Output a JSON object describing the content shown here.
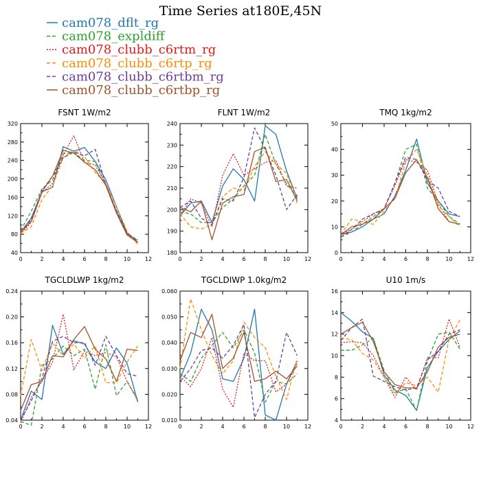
{
  "figure_title": "Time Series at180E,45N",
  "legend": [
    {
      "label": "cam078_dflt_rg",
      "color": "#1f77b4",
      "dash": "solid"
    },
    {
      "label": "cam078_expldiff",
      "color": "#2ca02c",
      "dash": "dashed"
    },
    {
      "label": "cam078_clubb_c6rtm_rg",
      "color": "#e31a1c",
      "dash": "dotted"
    },
    {
      "label": "cam078_clubb_c6rtp_rg",
      "color": "#ff8c00",
      "dash": "dashed"
    },
    {
      "label": "cam078_clubb_c6rtbm_rg",
      "color": "#6a3d9a",
      "dash": "dashed"
    },
    {
      "label": "cam078_clubb_c6rtbp_rg",
      "color": "#a0522d",
      "dash": "solid"
    }
  ],
  "chart_data": [
    {
      "type": "line",
      "title": "FSNT 1W/m2",
      "x": [
        0,
        1,
        2,
        3,
        4,
        5,
        6,
        7,
        8,
        9,
        10,
        11
      ],
      "xlim": [
        0,
        12
      ],
      "xticks": [
        "0",
        "2",
        "4",
        "6",
        "8",
        "10",
        "12"
      ],
      "ylim": [
        40,
        320
      ],
      "yticks": [
        "40",
        "80",
        "120",
        "160",
        "200",
        "240",
        "280",
        "320"
      ],
      "series": [
        {
          "name": "cam078_dflt_rg",
          "values": [
            84,
            115,
            172,
            182,
            270,
            260,
            268,
            238,
            198,
            140,
            82,
            63
          ]
        },
        {
          "name": "cam078_expldiff",
          "values": [
            88,
            130,
            178,
            198,
            255,
            257,
            240,
            238,
            186,
            132,
            80,
            68
          ]
        },
        {
          "name": "cam078_clubb_c6rtm_rg",
          "values": [
            80,
            106,
            170,
            190,
            252,
            294,
            236,
            230,
            190,
            128,
            82,
            62
          ]
        },
        {
          "name": "cam078_clubb_c6rtp_rg",
          "values": [
            82,
            96,
            155,
            185,
            246,
            262,
            248,
            214,
            190,
            140,
            86,
            58
          ]
        },
        {
          "name": "cam078_clubb_c6rtbm_rg",
          "values": [
            86,
            112,
            175,
            206,
            246,
            258,
            250,
            264,
            188,
            130,
            82,
            66
          ]
        },
        {
          "name": "cam078_clubb_c6rtbp_rg",
          "values": [
            84,
            108,
            172,
            206,
            262,
            256,
            236,
            220,
            186,
            126,
            78,
            62
          ]
        }
      ]
    },
    {
      "type": "line",
      "title": "FLNT 1W/m2",
      "x": [
        0,
        1,
        2,
        3,
        4,
        5,
        6,
        7,
        8,
        9,
        10,
        11
      ],
      "xlim": [
        0,
        12
      ],
      "xticks": [
        "0",
        "2",
        "4",
        "6",
        "8",
        "10",
        "12"
      ],
      "ylim": [
        180,
        240
      ],
      "yticks": [
        "180",
        "190",
        "200",
        "210",
        "220",
        "230",
        "240"
      ],
      "series": [
        {
          "name": "cam078_dflt_rg",
          "values": [
            197,
            203,
            204,
            194,
            211,
            219,
            214,
            204,
            239,
            235,
            218,
            205
          ]
        },
        {
          "name": "cam078_expldiff",
          "values": [
            199,
            198,
            194,
            194,
            201,
            205,
            211,
            216,
            235,
            221,
            212,
            206
          ]
        },
        {
          "name": "cam078_clubb_c6rtm_rg",
          "values": [
            197,
            205,
            203,
            192,
            216,
            226,
            216,
            219,
            222,
            223,
            211,
            210
          ]
        },
        {
          "name": "cam078_clubb_c6rtp_rg",
          "values": [
            198,
            192,
            191,
            193,
            206,
            210,
            209,
            220,
            227,
            221,
            217,
            203
          ]
        },
        {
          "name": "cam078_clubb_c6rtbm_rg",
          "values": [
            201,
            204,
            196,
            193,
            205,
            204,
            215,
            238,
            228,
            216,
            200,
            207
          ]
        },
        {
          "name": "cam078_clubb_c6rtbp_rg",
          "values": [
            201,
            199,
            204,
            186,
            203,
            206,
            207,
            227,
            229,
            213,
            214,
            204
          ]
        }
      ]
    },
    {
      "type": "line",
      "title": "TMQ 1kg/m2",
      "x": [
        0,
        1,
        2,
        3,
        4,
        5,
        6,
        7,
        8,
        9,
        10,
        11
      ],
      "xlim": [
        0,
        12
      ],
      "xticks": [
        "0",
        "2",
        "4",
        "6",
        "8",
        "10",
        "12"
      ],
      "ylim": [
        0,
        50
      ],
      "yticks": [
        "0",
        "10",
        "20",
        "30",
        "40",
        "50"
      ],
      "series": [
        {
          "name": "cam078_dflt_rg",
          "values": [
            7,
            8,
            10,
            13,
            15,
            22,
            32,
            44,
            27,
            20,
            15,
            14
          ]
        },
        {
          "name": "cam078_expldiff",
          "values": [
            6,
            8,
            11,
            14,
            17,
            27,
            40,
            42,
            25,
            20,
            14,
            11
          ]
        },
        {
          "name": "cam078_clubb_c6rtm_rg",
          "values": [
            7,
            9,
            12,
            15,
            17,
            26,
            36,
            35,
            32,
            19,
            12,
            11
          ]
        },
        {
          "name": "cam078_clubb_c6rtp_rg",
          "values": [
            7,
            13,
            12,
            11,
            16,
            21,
            35,
            40,
            30,
            18,
            14,
            10
          ]
        },
        {
          "name": "cam078_clubb_c6rtbm_rg",
          "values": [
            6,
            9,
            13,
            15,
            17,
            27,
            37,
            36,
            28,
            25,
            16,
            14
          ]
        },
        {
          "name": "cam078_clubb_c6rtbp_rg",
          "values": [
            7,
            10,
            11,
            13,
            17,
            21,
            31,
            36,
            29,
            17,
            12,
            11
          ]
        }
      ]
    },
    {
      "type": "line",
      "title": "TGCLDLWP 1kg/m2",
      "x": [
        0,
        1,
        2,
        3,
        4,
        5,
        6,
        7,
        8,
        9,
        10,
        11
      ],
      "xlim": [
        0,
        12
      ],
      "xticks": [
        "0",
        "2",
        "4",
        "6",
        "8",
        "10",
        "12"
      ],
      "ylim": [
        0.04,
        0.24
      ],
      "yticks": [
        "0.04",
        "0.08",
        "0.12",
        "0.16",
        "0.20",
        "0.24"
      ],
      "series": [
        {
          "name": "cam078_dflt_rg",
          "values": [
            0.04,
            0.085,
            0.072,
            0.187,
            0.142,
            0.163,
            0.158,
            0.13,
            0.12,
            0.152,
            0.128,
            0.068
          ]
        },
        {
          "name": "cam078_expldiff",
          "values": [
            0.038,
            0.032,
            0.125,
            0.135,
            0.155,
            0.14,
            0.15,
            0.088,
            0.157,
            0.078,
            0.1,
            0.072
          ]
        },
        {
          "name": "cam078_clubb_c6rtm_rg",
          "values": [
            0.036,
            0.075,
            0.1,
            0.13,
            0.204,
            0.118,
            0.147,
            0.14,
            0.145,
            0.138,
            0.1,
            0.07
          ]
        },
        {
          "name": "cam078_clubb_c6rtp_rg",
          "values": [
            0.078,
            0.165,
            0.117,
            0.16,
            0.14,
            0.158,
            0.136,
            0.155,
            0.098,
            0.098,
            0.13,
            0.155
          ]
        },
        {
          "name": "cam078_clubb_c6rtbm_rg",
          "values": [
            0.04,
            0.07,
            0.105,
            0.162,
            0.17,
            0.16,
            0.16,
            0.125,
            0.17,
            0.14,
            0.112,
            0.108
          ]
        },
        {
          "name": "cam078_clubb_c6rtbp_rg",
          "values": [
            0.055,
            0.095,
            0.1,
            0.14,
            0.138,
            0.165,
            0.185,
            0.15,
            0.135,
            0.1,
            0.15,
            0.148
          ]
        }
      ]
    },
    {
      "type": "line",
      "title": "TGCLDIWP 1.0kg/m2",
      "x": [
        0,
        1,
        2,
        3,
        4,
        5,
        6,
        7,
        8,
        9,
        10,
        11
      ],
      "xlim": [
        0,
        12
      ],
      "xticks": [
        "0",
        "2",
        "4",
        "6",
        "8",
        "10",
        "12"
      ],
      "ylim": [
        0.01,
        0.06
      ],
      "yticks": [
        "0.010",
        "0.020",
        "0.030",
        "0.040",
        "0.050",
        "0.060"
      ],
      "series": [
        {
          "name": "cam078_dflt_rg",
          "values": [
            0.026,
            0.036,
            0.053,
            0.045,
            0.026,
            0.025,
            0.034,
            0.053,
            0.012,
            0.01,
            0.024,
            0.033
          ]
        },
        {
          "name": "cam078_expldiff",
          "values": [
            0.028,
            0.025,
            0.034,
            0.039,
            0.044,
            0.038,
            0.045,
            0.036,
            0.017,
            0.025,
            0.024,
            0.028
          ]
        },
        {
          "name": "cam078_clubb_c6rtm_rg",
          "values": [
            0.027,
            0.023,
            0.03,
            0.042,
            0.022,
            0.015,
            0.036,
            0.033,
            0.033,
            0.021,
            0.024,
            0.032
          ]
        },
        {
          "name": "cam078_clubb_c6rtp_rg",
          "values": [
            0.03,
            0.057,
            0.045,
            0.035,
            0.028,
            0.033,
            0.048,
            0.042,
            0.038,
            0.027,
            0.018,
            0.034
          ]
        },
        {
          "name": "cam078_clubb_c6rtbm_rg",
          "values": [
            0.025,
            0.03,
            0.037,
            0.038,
            0.034,
            0.039,
            0.047,
            0.011,
            0.02,
            0.025,
            0.044,
            0.035
          ]
        },
        {
          "name": "cam078_clubb_c6rtbp_rg",
          "values": [
            0.033,
            0.044,
            0.042,
            0.051,
            0.03,
            0.034,
            0.044,
            0.025,
            0.026,
            0.029,
            0.026,
            0.031
          ]
        }
      ]
    },
    {
      "type": "line",
      "title": "U10 1m/s",
      "x": [
        0,
        1,
        2,
        3,
        4,
        5,
        6,
        7,
        8,
        9,
        10,
        11
      ],
      "xlim": [
        0,
        12
      ],
      "xticks": [
        "0",
        "2",
        "4",
        "6",
        "8",
        "10",
        "12"
      ],
      "ylim": [
        4,
        16
      ],
      "yticks": [
        "4",
        "6",
        "8",
        "10",
        "12",
        "14",
        "16"
      ],
      "series": [
        {
          "name": "cam078_dflt_rg",
          "values": [
            14.0,
            13.2,
            12.2,
            11.6,
            8.2,
            6.8,
            6.3,
            4.9,
            8.9,
            10.4,
            11.5,
            12.3
          ]
        },
        {
          "name": "cam078_expldiff",
          "values": [
            10.5,
            10.5,
            11.0,
            11.6,
            8.6,
            6.6,
            6.9,
            4.9,
            9.5,
            12.0,
            12.2,
            10.6
          ]
        },
        {
          "name": "cam078_clubb_c6rtm_rg",
          "values": [
            11.2,
            11.3,
            11.2,
            10.0,
            8.0,
            6.1,
            8.0,
            6.8,
            9.8,
            9.8,
            13.4,
            10.8
          ]
        },
        {
          "name": "cam078_clubb_c6rtp_rg",
          "values": [
            11.6,
            11.5,
            10.2,
            9.6,
            8.0,
            6.4,
            7.5,
            7.2,
            8.0,
            6.6,
            11.5,
            13.3
          ]
        },
        {
          "name": "cam078_clubb_c6rtbm_rg",
          "values": [
            11.4,
            12.6,
            13.4,
            8.1,
            7.6,
            7.1,
            6.8,
            7.0,
            9.6,
            10.4,
            12.0,
            12.4
          ]
        },
        {
          "name": "cam078_clubb_c6rtbp_rg",
          "values": [
            12.0,
            12.6,
            13.1,
            11.3,
            8.5,
            7.3,
            7.0,
            7.0,
            8.5,
            10.8,
            11.7,
            12.0
          ]
        }
      ]
    }
  ]
}
